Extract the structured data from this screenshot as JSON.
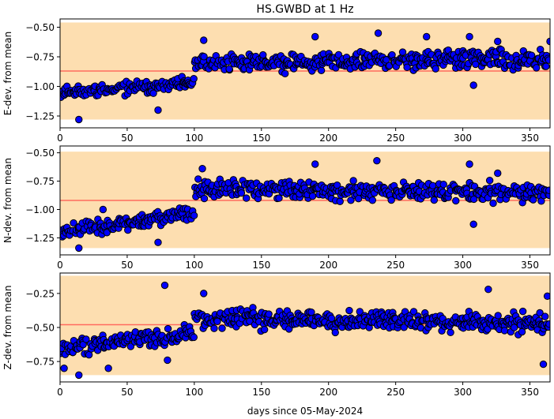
{
  "title": "HS.GWBD at 1 Hz",
  "xlabel": "days since 05-May-2024",
  "colors": {
    "band": "#fddeb0",
    "mean_line": "#ff6b5e",
    "point_fill": "#0000ff",
    "point_edge": "#000000"
  },
  "chart_data": [
    {
      "type": "scatter",
      "name": "E",
      "ylabel": "E-dev. from mean",
      "xlim": [
        0,
        365
      ],
      "ylim": [
        -1.35,
        -0.43
      ],
      "xticks": [
        0,
        50,
        100,
        150,
        200,
        250,
        300,
        350
      ],
      "yticks": [
        -1.25,
        -1.0,
        -0.75,
        -0.5
      ],
      "ytick_labels": [
        "−1.25",
        "−1.00",
        "−0.75",
        "−0.50"
      ],
      "mean": -0.87,
      "band": [
        -1.28,
        -0.46
      ],
      "segments": [
        {
          "x0": 0,
          "x1": 100,
          "y0": -1.05,
          "y1": -0.98,
          "amp": 0.06
        },
        {
          "x0": 100,
          "x1": 365,
          "y0": -0.8,
          "y1": -0.77,
          "amp": 0.09
        }
      ],
      "outliers": [
        {
          "x": 14,
          "y": -1.28
        },
        {
          "x": 73,
          "y": -1.2
        },
        {
          "x": 107,
          "y": -0.61
        },
        {
          "x": 190,
          "y": -0.58
        },
        {
          "x": 237,
          "y": -0.55
        },
        {
          "x": 273,
          "y": -0.58
        },
        {
          "x": 305,
          "y": -0.58
        },
        {
          "x": 326,
          "y": -0.62
        },
        {
          "x": 365,
          "y": -0.62
        },
        {
          "x": 308,
          "y": -0.99
        }
      ],
      "seed": 11
    },
    {
      "type": "scatter",
      "name": "N",
      "ylabel": "N-dev. from mean",
      "xlim": [
        0,
        365
      ],
      "ylim": [
        -1.4,
        -0.44
      ],
      "xticks": [
        0,
        50,
        100,
        150,
        200,
        250,
        300,
        350
      ],
      "yticks": [
        -1.25,
        -1.0,
        -0.75,
        -0.5
      ],
      "ytick_labels": [
        "−1.25",
        "−1.00",
        "−0.75",
        "−0.50"
      ],
      "mean": -0.92,
      "band": [
        -1.34,
        -0.49
      ],
      "segments": [
        {
          "x0": 0,
          "x1": 100,
          "y0": -1.2,
          "y1": -1.03,
          "amp": 0.07
        },
        {
          "x0": 100,
          "x1": 365,
          "y0": -0.82,
          "y1": -0.85,
          "amp": 0.09
        }
      ],
      "outliers": [
        {
          "x": 14,
          "y": -1.34
        },
        {
          "x": 73,
          "y": -1.29
        },
        {
          "x": 106,
          "y": -0.64
        },
        {
          "x": 190,
          "y": -0.6
        },
        {
          "x": 236,
          "y": -0.57
        },
        {
          "x": 305,
          "y": -0.6
        },
        {
          "x": 326,
          "y": -0.68
        },
        {
          "x": 308,
          "y": -1.13
        },
        {
          "x": 32,
          "y": -1.0
        }
      ],
      "seed": 23
    },
    {
      "type": "scatter",
      "name": "Z",
      "ylabel": "Z-dev. from mean",
      "xlim": [
        0,
        365
      ],
      "ylim": [
        -0.9,
        -0.1
      ],
      "xticks": [
        0,
        50,
        100,
        150,
        200,
        250,
        300,
        350
      ],
      "yticks": [
        -0.75,
        -0.5,
        -0.25
      ],
      "ytick_labels": [
        "−0.75",
        "−0.50",
        "−0.25"
      ],
      "mean": -0.48,
      "band": [
        -0.85,
        -0.12
      ],
      "segments": [
        {
          "x0": 0,
          "x1": 100,
          "y0": -0.65,
          "y1": -0.55,
          "amp": 0.07
        },
        {
          "x0": 100,
          "x1": 365,
          "y0": -0.43,
          "y1": -0.47,
          "amp": 0.08
        }
      ],
      "outliers": [
        {
          "x": 78,
          "y": -0.19
        },
        {
          "x": 3,
          "y": -0.8
        },
        {
          "x": 14,
          "y": -0.85
        },
        {
          "x": 36,
          "y": -0.8
        },
        {
          "x": 80,
          "y": -0.74
        },
        {
          "x": 107,
          "y": -0.25
        },
        {
          "x": 319,
          "y": -0.22
        },
        {
          "x": 360,
          "y": -0.77
        },
        {
          "x": 363,
          "y": -0.27
        }
      ],
      "seed": 37
    }
  ]
}
